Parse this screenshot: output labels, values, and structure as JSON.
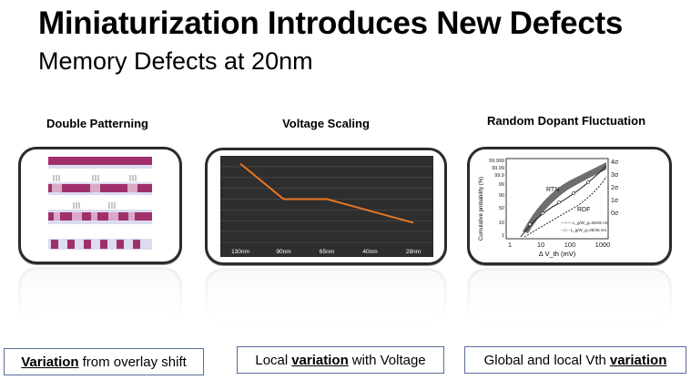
{
  "header": {
    "title": "Miniaturization Introduces New Defects",
    "subtitle": "Memory Defects at 20nm"
  },
  "panels": [
    {
      "title": "Double Patterning"
    },
    {
      "title": "Voltage Scaling"
    },
    {
      "title": "Random Dopant Fluctuation"
    }
  ],
  "voltage_chart": {
    "chart_data": {
      "type": "line",
      "categories": [
        "130nm",
        "90nm",
        "65nm",
        "40nm",
        "28nm"
      ],
      "values": [
        100,
        55,
        55,
        40,
        25
      ],
      "ylim": [
        0,
        110
      ],
      "grid": true,
      "title": "",
      "xlabel": "",
      "ylabel": ""
    },
    "line_color": "#e87722",
    "background": "#2e2e2e"
  },
  "rdf_figure": {
    "ylabel": "Cumulative probability (%)",
    "xlabel": "Δ V_th (mV)",
    "x_ticks": [
      "1",
      "10",
      "100",
      "1000"
    ],
    "y_ticks": [
      "99.999",
      "99.99",
      "99.9",
      "99",
      "90",
      "50",
      "10",
      "1"
    ],
    "sigma_ticks": [
      "4σ",
      "3σ",
      "2σ",
      "1σ",
      "0σ"
    ],
    "labels": [
      "RTN",
      "RDF"
    ],
    "legend": [
      "—○— L_g/W_g=28/45 nm",
      "--◇-- L_g/W_g=28/45 nm"
    ]
  },
  "captions": [
    {
      "emphasis": "Variation",
      "text": "from overlay shift"
    },
    {
      "before": "Local",
      "emphasis": "variation",
      "after": "with Voltage"
    },
    {
      "before": "Global and local Vth",
      "emphasis": "variation"
    }
  ],
  "colors": {
    "pattern_dark": "#a0306c",
    "pattern_light": "#d9a9c6",
    "pattern_bg": "#dcdcf0",
    "caption_border": "#5a6e9a"
  }
}
